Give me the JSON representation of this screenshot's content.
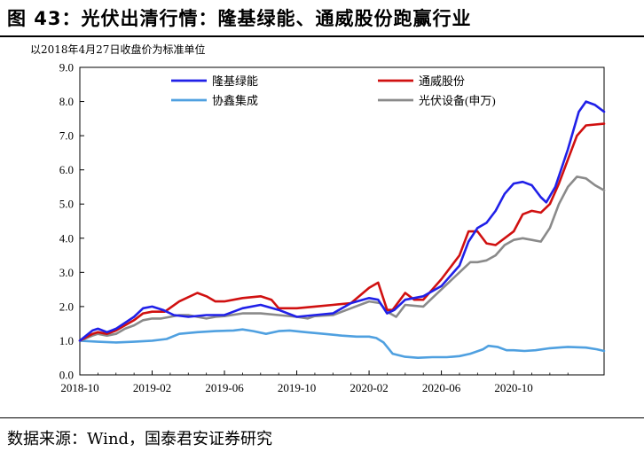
{
  "figure": {
    "title": "图 43：光伏出清行情：隆基绿能、通威股份跑赢行业",
    "subtitle": "以2018年4月27日收盘价为标准单位",
    "source": "数据来源：Wind，国泰君安证券研究"
  },
  "chart_data": {
    "type": "line",
    "title": "",
    "xlabel": "",
    "ylabel": "",
    "ylim": [
      0,
      9
    ],
    "xlim": [
      "2018-10",
      "2021-03"
    ],
    "yticks": [
      "0.0",
      "1.0",
      "2.0",
      "3.0",
      "4.0",
      "5.0",
      "6.0",
      "7.0",
      "8.0",
      "9.0"
    ],
    "xticks": [
      "2018-10",
      "2019-02",
      "2019-06",
      "2019-10",
      "2020-02",
      "2020-06",
      "2020-10"
    ],
    "grid": false,
    "legend": "top, two columns",
    "x_unit": "months since 2018-10",
    "series": [
      {
        "name": "隆基绿能",
        "color": "#2020e8",
        "points": [
          [
            0,
            1.0
          ],
          [
            0.7,
            1.3
          ],
          [
            1,
            1.35
          ],
          [
            1.5,
            1.25
          ],
          [
            2,
            1.35
          ],
          [
            3,
            1.7
          ],
          [
            3.5,
            1.95
          ],
          [
            4,
            2.0
          ],
          [
            4.6,
            1.9
          ],
          [
            5.2,
            1.75
          ],
          [
            6,
            1.7
          ],
          [
            7,
            1.75
          ],
          [
            8,
            1.75
          ],
          [
            9,
            1.95
          ],
          [
            10,
            2.05
          ],
          [
            11,
            1.9
          ],
          [
            12,
            1.7
          ],
          [
            13,
            1.75
          ],
          [
            14,
            1.8
          ],
          [
            15,
            2.1
          ],
          [
            16,
            2.25
          ],
          [
            16.5,
            2.2
          ],
          [
            17,
            1.8
          ],
          [
            17.4,
            1.9
          ],
          [
            18,
            2.2
          ],
          [
            19,
            2.3
          ],
          [
            20,
            2.6
          ],
          [
            21,
            3.2
          ],
          [
            21.5,
            3.9
          ],
          [
            22,
            4.3
          ],
          [
            22.5,
            4.45
          ],
          [
            23,
            4.8
          ],
          [
            23.5,
            5.3
          ],
          [
            24,
            5.6
          ],
          [
            24.5,
            5.65
          ],
          [
            25,
            5.55
          ],
          [
            25.5,
            5.2
          ],
          [
            25.8,
            5.05
          ],
          [
            26.3,
            5.5
          ],
          [
            27,
            6.6
          ],
          [
            27.6,
            7.7
          ],
          [
            28,
            8.0
          ],
          [
            28.5,
            7.9
          ],
          [
            29,
            7.7
          ]
        ]
      },
      {
        "name": "通威股份",
        "color": "#d01010",
        "points": [
          [
            0,
            1.0
          ],
          [
            0.7,
            1.2
          ],
          [
            1,
            1.25
          ],
          [
            1.5,
            1.2
          ],
          [
            2,
            1.3
          ],
          [
            3,
            1.6
          ],
          [
            3.5,
            1.8
          ],
          [
            4,
            1.85
          ],
          [
            4.7,
            1.85
          ],
          [
            5.5,
            2.15
          ],
          [
            6.5,
            2.4
          ],
          [
            7,
            2.3
          ],
          [
            7.5,
            2.15
          ],
          [
            8,
            2.15
          ],
          [
            9,
            2.25
          ],
          [
            10,
            2.3
          ],
          [
            10.6,
            2.2
          ],
          [
            11,
            1.95
          ],
          [
            12,
            1.95
          ],
          [
            13,
            2.0
          ],
          [
            14,
            2.05
          ],
          [
            15,
            2.1
          ],
          [
            16,
            2.55
          ],
          [
            16.5,
            2.7
          ],
          [
            17,
            1.9
          ],
          [
            17.3,
            1.9
          ],
          [
            18,
            2.4
          ],
          [
            18.5,
            2.2
          ],
          [
            19,
            2.2
          ],
          [
            20,
            2.8
          ],
          [
            21,
            3.5
          ],
          [
            21.5,
            4.2
          ],
          [
            22,
            4.2
          ],
          [
            22.5,
            3.85
          ],
          [
            23,
            3.8
          ],
          [
            24,
            4.2
          ],
          [
            24.5,
            4.7
          ],
          [
            25,
            4.8
          ],
          [
            25.5,
            4.75
          ],
          [
            26,
            5.0
          ],
          [
            26.5,
            5.6
          ],
          [
            27,
            6.3
          ],
          [
            27.5,
            7.0
          ],
          [
            28,
            7.3
          ],
          [
            29,
            7.35
          ]
        ]
      },
      {
        "name": "协鑫集成",
        "color": "#4fa0e0",
        "points": [
          [
            0,
            1.0
          ],
          [
            1,
            0.97
          ],
          [
            2,
            0.95
          ],
          [
            3,
            0.97
          ],
          [
            4,
            1.0
          ],
          [
            4.8,
            1.05
          ],
          [
            5.5,
            1.2
          ],
          [
            6.5,
            1.25
          ],
          [
            7.5,
            1.28
          ],
          [
            8.5,
            1.3
          ],
          [
            9,
            1.33
          ],
          [
            9.6,
            1.28
          ],
          [
            10.3,
            1.2
          ],
          [
            11,
            1.28
          ],
          [
            11.6,
            1.3
          ],
          [
            12.5,
            1.25
          ],
          [
            13.5,
            1.2
          ],
          [
            14.5,
            1.15
          ],
          [
            15.3,
            1.12
          ],
          [
            16,
            1.12
          ],
          [
            16.4,
            1.08
          ],
          [
            16.8,
            0.95
          ],
          [
            17.3,
            0.62
          ],
          [
            18,
            0.53
          ],
          [
            18.7,
            0.5
          ],
          [
            19.5,
            0.52
          ],
          [
            20.3,
            0.52
          ],
          [
            21,
            0.55
          ],
          [
            21.6,
            0.62
          ],
          [
            22.3,
            0.75
          ],
          [
            22.6,
            0.85
          ],
          [
            23.1,
            0.82
          ],
          [
            23.6,
            0.72
          ],
          [
            24,
            0.72
          ],
          [
            24.6,
            0.7
          ],
          [
            25.2,
            0.72
          ],
          [
            26,
            0.78
          ],
          [
            27,
            0.82
          ],
          [
            28,
            0.8
          ],
          [
            28.6,
            0.75
          ],
          [
            29,
            0.7
          ]
        ]
      },
      {
        "name": "光伏设备(申万)",
        "color": "#8a8a8a",
        "points": [
          [
            0,
            1.0
          ],
          [
            0.7,
            1.15
          ],
          [
            1,
            1.2
          ],
          [
            1.5,
            1.15
          ],
          [
            2,
            1.2
          ],
          [
            2.5,
            1.35
          ],
          [
            3,
            1.45
          ],
          [
            3.5,
            1.6
          ],
          [
            4,
            1.65
          ],
          [
            4.5,
            1.65
          ],
          [
            5,
            1.7
          ],
          [
            5.5,
            1.75
          ],
          [
            6,
            1.75
          ],
          [
            6.5,
            1.7
          ],
          [
            7,
            1.65
          ],
          [
            7.5,
            1.7
          ],
          [
            8,
            1.72
          ],
          [
            9,
            1.8
          ],
          [
            10,
            1.8
          ],
          [
            11,
            1.75
          ],
          [
            12,
            1.7
          ],
          [
            12.6,
            1.65
          ],
          [
            13,
            1.72
          ],
          [
            14,
            1.75
          ],
          [
            15,
            1.95
          ],
          [
            16,
            2.15
          ],
          [
            16.6,
            2.1
          ],
          [
            17,
            1.85
          ],
          [
            17.5,
            1.7
          ],
          [
            18,
            2.05
          ],
          [
            19,
            2.0
          ],
          [
            19.6,
            2.3
          ],
          [
            20,
            2.5
          ],
          [
            21,
            3.0
          ],
          [
            21.6,
            3.3
          ],
          [
            22,
            3.3
          ],
          [
            22.5,
            3.35
          ],
          [
            23,
            3.5
          ],
          [
            23.5,
            3.8
          ],
          [
            24,
            3.95
          ],
          [
            24.5,
            4.0
          ],
          [
            25,
            3.95
          ],
          [
            25.5,
            3.9
          ],
          [
            26,
            4.3
          ],
          [
            26.5,
            5.0
          ],
          [
            27,
            5.5
          ],
          [
            27.5,
            5.8
          ],
          [
            28,
            5.75
          ],
          [
            28.5,
            5.55
          ],
          [
            29,
            5.4
          ]
        ]
      }
    ]
  }
}
